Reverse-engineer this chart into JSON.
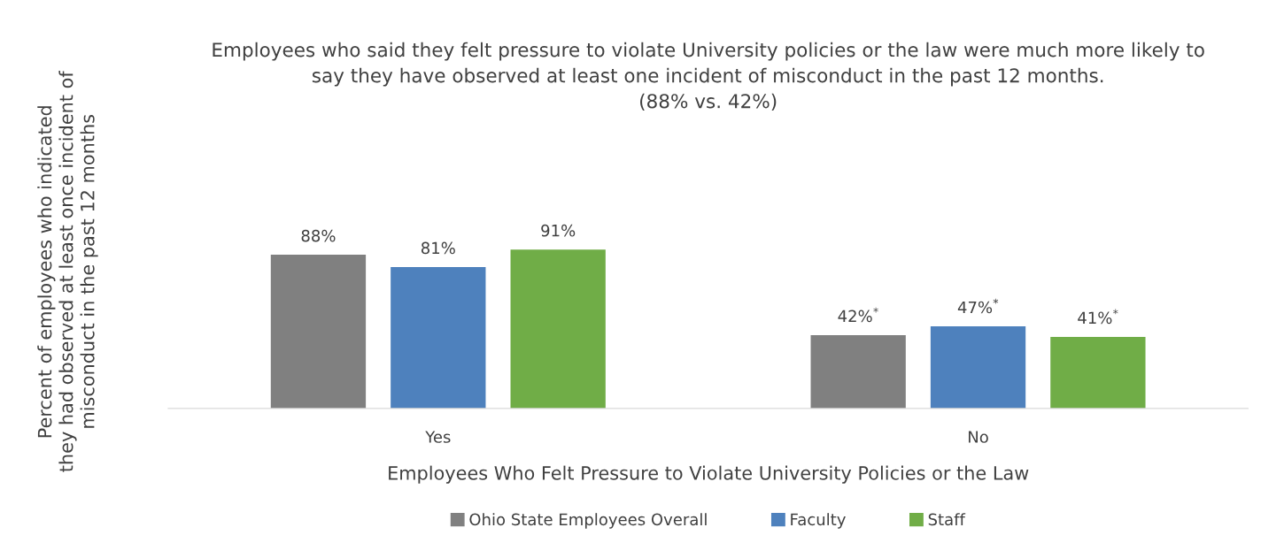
{
  "chart_data": {
    "type": "bar",
    "title": "Employees who said they felt pressure to violate University policies or the law were much more likely to\nsay they have observed at least one incident of misconduct in the past 12 months.\n(88% vs. 42%)",
    "xlabel": "Employees Who Felt Pressure to Violate University Policies or the Law",
    "ylabel": "Percent of employees who indicated\nthey had observed at least once incident of\nmisconduct in the past 12 months",
    "categories": [
      "Yes",
      "No"
    ],
    "series": [
      {
        "name": "Ohio State Employees Overall",
        "color": "#808080",
        "values": [
          88,
          42
        ],
        "value_labels": [
          "88%",
          "42%$^{*}$"
        ]
      },
      {
        "name": "Faculty",
        "color": "#4e81bd",
        "values": [
          81,
          47
        ],
        "value_labels": [
          "81%",
          "47%$^{*}$"
        ]
      },
      {
        "name": "Staff",
        "color": "#70ad47",
        "values": [
          91,
          41
        ],
        "value_labels": [
          "91%",
          "41%$^{*}$"
        ]
      }
    ],
    "legend": "bottom",
    "grid": false,
    "tick_labels": "x"
  }
}
